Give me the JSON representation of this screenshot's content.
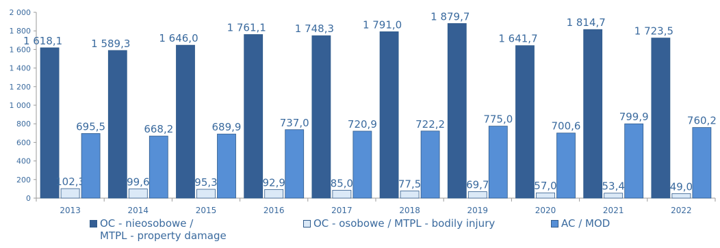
{
  "chart_data": {
    "type": "bar",
    "categories": [
      "2013",
      "2014",
      "2015",
      "2016",
      "2017",
      "2018",
      "2019",
      "2020",
      "2021",
      "2022"
    ],
    "series": [
      {
        "name": "OC - nieosobowe / MTPL - property damage",
        "color": "#355f94",
        "values": [
          1618.1,
          1589.3,
          1646.0,
          1761.1,
          1748.3,
          1791.0,
          1879.7,
          1641.7,
          1814.7,
          1723.5
        ],
        "labels": [
          "1 618,1",
          "1 589,3",
          "1 646,0",
          "1 761,1",
          "1 748,3",
          "1 791,0",
          "1 879,7",
          "1 641,7",
          "1 814,7",
          "1 723,5"
        ]
      },
      {
        "name": "OC - osobowe / MTPL - bodily injury",
        "color": "#dbe9f7",
        "values": [
          102.3,
          99.6,
          95.3,
          92.9,
          85.0,
          77.5,
          69.7,
          57.0,
          53.4,
          49.0
        ],
        "labels": [
          "102,3",
          "99,6",
          "95,3",
          "92,9",
          "85,0",
          "77,5",
          "69,7",
          "57,0",
          "53,4",
          "49,0"
        ]
      },
      {
        "name": "AC / MOD",
        "color": "#568fd6",
        "values": [
          695.5,
          668.2,
          689.9,
          737.0,
          720.9,
          722.2,
          775.0,
          700.6,
          799.9,
          760.2
        ],
        "labels": [
          "695,5",
          "668,2",
          "689,9",
          "737,0",
          "720,9",
          "722,2",
          "775,0",
          "700,6",
          "799,9",
          "760,2"
        ]
      }
    ],
    "yticks": [
      "0",
      "200",
      "400",
      "600",
      "800",
      "1 000",
      "1 200",
      "1 400",
      "1 600",
      "1 800",
      "2 000"
    ],
    "ylim": [
      0,
      2000
    ],
    "grid": false,
    "legend_position": "bottom",
    "title": "",
    "xlabel": "",
    "ylabel": ""
  },
  "legend": {
    "item0_line1": "OC - nieosobowe /",
    "item0_line2": "MTPL  - property damage",
    "item1": "OC - osobowe / MTPL - bodily injury",
    "item2": "AC / MOD"
  }
}
